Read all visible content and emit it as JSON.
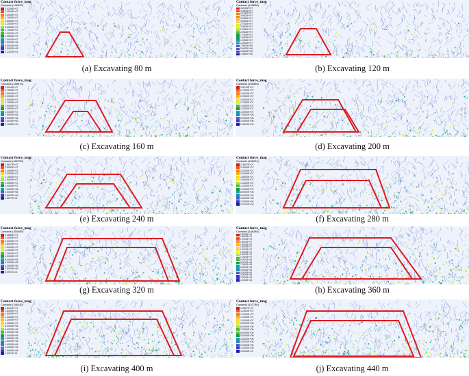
{
  "legend_title": "Contact force_mag",
  "legend_colors": [
    "#d7191c",
    "#f4511e",
    "#ff7f0e",
    "#ffb300",
    "#ffd92f",
    "#e6f021",
    "#a6d96a",
    "#4dbd3c",
    "#1a9850",
    "#00a6a6",
    "#2b83ba",
    "#4a5fc1",
    "#3a3ad0",
    "#1f1fa8"
  ],
  "network_color": "#3d5fc4",
  "outline_color": "#e0191f",
  "panels": [
    {
      "caption": "(a) Excavating 80 m",
      "legend_sub": "Contacts (145529)",
      "legend_values": [
        "3.5206E+07",
        "3.2500E+07",
        "3.0000E+07",
        "2.7500E+07",
        "2.5000E+07",
        "2.2500E+07",
        "2.0000E+07",
        "1.7500E+07",
        "1.5000E+07",
        "1.2500E+07",
        "1.0000E+07",
        "7.5000E+06",
        "5.0000E+06",
        "2.5000E+06",
        "1.2151E+01"
      ]
    },
    {
      "caption": "(b) Excavating 120 m",
      "legend_sub": "Contacts (145656)",
      "legend_values": [
        "4.2613E+07",
        "4.0000E+07",
        "3.7500E+07",
        "3.5000E+07",
        "3.2500E+07",
        "3.0000E+07",
        "2.7500E+07",
        "2.5000E+07",
        "2.2500E+07",
        "2.0000E+07",
        "1.7500E+07",
        "1.5000E+07",
        "1.2500E+07",
        "1.0000E+07",
        "7.5000E+06",
        "5.0000E+06",
        "2.5000E+06",
        "1.5664E+00"
      ]
    },
    {
      "caption": "(c) Excavating 160 m",
      "legend_sub": "Contacts (158573)",
      "legend_values": [
        "2.9919E+07",
        "2.7500E+07",
        "2.5000E+07",
        "2.2500E+07",
        "2.0000E+07",
        "1.7500E+07",
        "1.5000E+07",
        "1.2500E+07",
        "1.0000E+07",
        "7.5000E+06",
        "5.0000E+06",
        "2.5000E+06",
        "2.1085E+00"
      ]
    },
    {
      "caption": "(d) Excavating 200 m",
      "legend_sub": "Contacts (153550)",
      "legend_values": [
        "2.8476E+07",
        "2.7500E+07",
        "2.5000E+07",
        "2.2500E+07",
        "2.0000E+07",
        "1.7500E+07",
        "1.5000E+07",
        "1.2500E+07",
        "1.0000E+07",
        "7.5000E+06",
        "5.0000E+06",
        "2.5000E+06",
        "2.3624E+00"
      ]
    },
    {
      "caption": "(e) Excavating 240 m",
      "legend_sub": "Contacts (152750)",
      "legend_values": [
        "2.5817E+07",
        "2.5000E+07",
        "2.2500E+07",
        "2.0000E+07",
        "1.7500E+07",
        "1.5000E+07",
        "1.2500E+07",
        "1.0000E+07",
        "7.5000E+06",
        "5.0000E+06",
        "2.5000E+06",
        "1.6877E-01"
      ]
    },
    {
      "caption": "(f) Excavating 280 m",
      "legend_sub": "Contacts (151201)",
      "legend_values": [
        "2.4807E+07",
        "2.4000E+07",
        "2.2000E+07",
        "2.0000E+07",
        "1.8000E+07",
        "1.6000E+07",
        "1.4000E+07",
        "1.2000E+07",
        "1.0000E+07",
        "8.0000E+06",
        "6.0000E+06",
        "4.0000E+06",
        "2.0000E+06",
        "2.1431E+00"
      ]
    },
    {
      "caption": "(g) Excavating 320 m",
      "legend_sub": "Contacts (150489)",
      "legend_values": [
        "2.2885E+07",
        "2.2000E+07",
        "2.0000E+07",
        "1.8000E+07",
        "1.6000E+07",
        "1.4000E+07",
        "1.2000E+07",
        "1.0000E+07",
        "8.0000E+06",
        "6.0000E+06",
        "4.0000E+06",
        "2.0000E+06",
        "8.4921E-01"
      ]
    },
    {
      "caption": "(h) Excavating 360 m",
      "legend_sub": "Contacts (148280)",
      "legend_values": [
        "1.8295E+07",
        "1.8000E+07",
        "1.7000E+07",
        "1.6000E+07",
        "1.5000E+07",
        "1.4000E+07",
        "1.3000E+07",
        "1.2000E+07",
        "1.1000E+07",
        "1.0000E+07",
        "9.0000E+06",
        "8.0000E+06",
        "7.0000E+06",
        "6.0000E+06",
        "5.0000E+06",
        "4.0000E+06",
        "3.0000E+06",
        "2.0000E+06",
        "1.0000E+06"
      ]
    },
    {
      "caption": "(i) Excavating 400 m",
      "legend_sub": "Contacts (148140)",
      "legend_values": [
        "1.8161E+07",
        "1.8000E+07",
        "1.6000E+07",
        "1.4000E+07",
        "1.2000E+07",
        "1.0000E+07",
        "8.0000E+06",
        "6.0000E+06",
        "4.0000E+06",
        "2.0000E+06",
        "1.8000E+06",
        "1.6000E+06",
        "1.4000E+06",
        "1.2000E+06",
        "1.0000E+06",
        "1.2071E-01"
      ]
    },
    {
      "caption": "(j) Excavating 440 m",
      "legend_sub": "Contacts (147780)",
      "legend_values": [
        "1.2827E+07",
        "1.2500E+07",
        "1.2000E+07",
        "1.1000E+07",
        "1.0000E+07",
        "9.0000E+06",
        "8.0000E+06",
        "7.0000E+06",
        "6.0000E+06",
        "5.0000E+06",
        "4.0000E+06",
        "3.0000E+06",
        "2.0000E+06",
        "1.0000E+06",
        "3.0496E-01"
      ]
    }
  ]
}
